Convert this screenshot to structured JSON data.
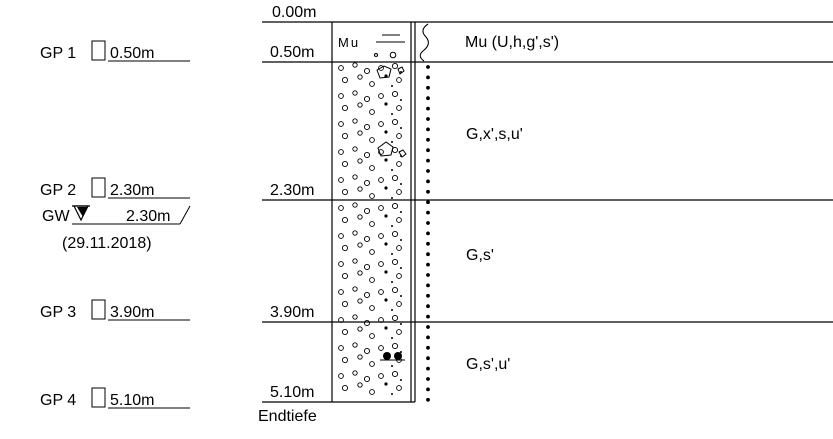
{
  "depth_labels": {
    "top": "0.00m",
    "d1": "0.50m",
    "d2": "2.30m",
    "d3": "3.90m",
    "d4": "5.10m",
    "end": "Endtiefe"
  },
  "samples": [
    {
      "id": "GP 1",
      "depth": "0.50m"
    },
    {
      "id": "GP 2",
      "depth": "2.30m"
    },
    {
      "id": "GP 3",
      "depth": "3.90m"
    },
    {
      "id": "GP 4",
      "depth": "5.10m"
    }
  ],
  "groundwater": {
    "label": "GW",
    "depth": "2.30m",
    "date": "(29.11.2018)"
  },
  "layers": [
    {
      "code": "Mu",
      "description": "Mu (U,h,g',s')"
    },
    {
      "description": "G,x',s,u'"
    },
    {
      "description": "G,s'"
    },
    {
      "description": "G,s',u'"
    }
  ]
}
